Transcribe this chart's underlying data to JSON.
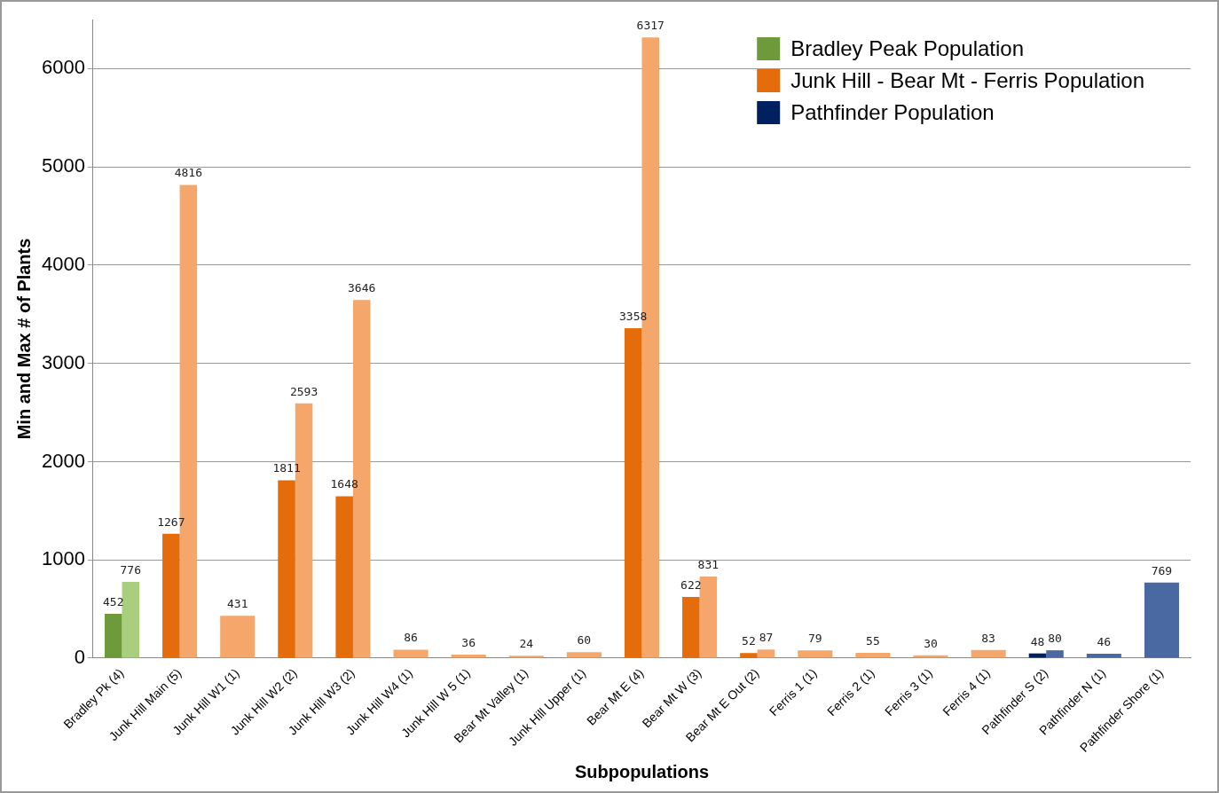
{
  "chart_data": {
    "type": "bar",
    "xlabel": "Subpopulations",
    "ylabel": "Min and Max # of Plants",
    "categories": [
      "Bradley Pk (4)",
      "Junk Hill Main (5)",
      "Junk Hill W1 (1)",
      "Junk Hill W2 (2)",
      "Junk Hill W3 (2)",
      "Junk Hill W4 (1)",
      "Junk Hill W 5 (1)",
      "Bear Mt Valley (1)",
      "Junk Hill Upper (1)",
      "Bear Mt E (4)",
      "Bear Mt W (3)",
      "Bear Mt E Out (2)",
      "Ferris 1 (1)",
      "Ferris 2 (1)",
      "Ferris 3 (1)",
      "Ferris 4 (1)",
      "Pathfinder S (2)",
      "Pathfinder N (1)",
      "Pathfinder Shore (1)"
    ],
    "series": [
      {
        "name": "Bradley Peak Population",
        "color": "#6f9a3c",
        "values": [
          452,
          null,
          null,
          null,
          null,
          null,
          null,
          null,
          null,
          null,
          null,
          null,
          null,
          null,
          null,
          null,
          null,
          null,
          null
        ]
      },
      {
        "color": "#a9cf7e",
        "values": [
          776,
          null,
          null,
          null,
          null,
          null,
          null,
          null,
          null,
          null,
          null,
          null,
          null,
          null,
          null,
          null,
          null,
          null,
          null
        ]
      },
      {
        "name": "Junk Hill - Bear Mt - Ferris Population",
        "color": "#e46c0a",
        "values": [
          null,
          1267,
          null,
          1811,
          1648,
          null,
          null,
          null,
          null,
          3358,
          622,
          52,
          null,
          null,
          null,
          null,
          null,
          null,
          null
        ]
      },
      {
        "color": "#f5a66a",
        "values": [
          null,
          4816,
          431,
          2593,
          3646,
          86,
          36,
          24,
          60,
          6317,
          831,
          87,
          79,
          55,
          30,
          83,
          null,
          null,
          null
        ]
      },
      {
        "name": "Pathfinder Population",
        "color": "#002060",
        "values": [
          null,
          null,
          null,
          null,
          null,
          null,
          null,
          null,
          null,
          null,
          null,
          null,
          null,
          null,
          null,
          null,
          48,
          null,
          null
        ]
      },
      {
        "color": "#4a69a3",
        "values": [
          null,
          null,
          null,
          null,
          null,
          null,
          null,
          null,
          null,
          null,
          null,
          null,
          null,
          null,
          null,
          null,
          80,
          46,
          769
        ]
      }
    ],
    "ylim": [
      0,
      6500
    ],
    "yticks": [
      0,
      1000,
      2000,
      3000,
      4000,
      5000,
      6000
    ],
    "grid": "y",
    "legend": "top right",
    "data_labels": true
  }
}
